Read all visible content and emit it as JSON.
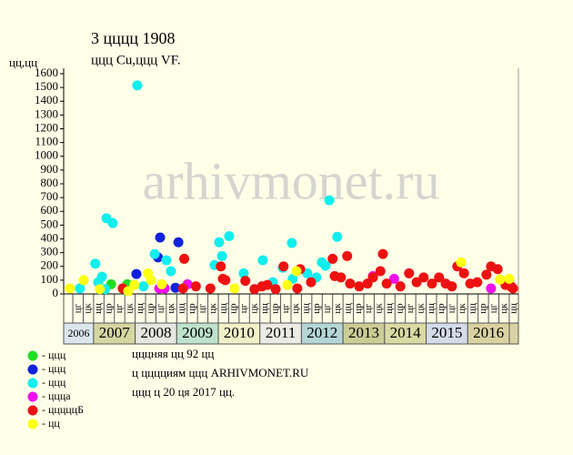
{
  "chart_data": {
    "type": "scatter",
    "title": "3 цццц 1908",
    "subtitle": "ццц Cu,ццц VF.",
    "y_label": "цц,цц",
    "watermark": "arhivmonet.ru",
    "notes": [
      "цццняя цц 92 цц",
      "ц цццциям ццц ARHIVMONET.RU",
      "ццц ц 20 ця 2017 цц."
    ],
    "xlim": [
      2006.28,
      2017.22
    ],
    "ylim": [
      0,
      1600
    ],
    "yticks": [
      0,
      100,
      200,
      300,
      400,
      500,
      600,
      700,
      800,
      900,
      1000,
      1100,
      1200,
      1300,
      1400,
      1500,
      1600
    ],
    "xticks": [
      {
        "value": 2006,
        "label": "2006"
      },
      {
        "value": 2007,
        "label": "2007"
      },
      {
        "value": 2008,
        "label": "2008"
      },
      {
        "value": 2009,
        "label": "2009"
      },
      {
        "value": 2010,
        "label": "2010"
      },
      {
        "value": 2011,
        "label": "2011"
      },
      {
        "value": 2012,
        "label": "2012"
      },
      {
        "value": 2013,
        "label": "2013"
      },
      {
        "value": 2014,
        "label": "2014"
      },
      {
        "value": 2015,
        "label": "2015"
      },
      {
        "value": 2016,
        "label": "2016"
      }
    ],
    "band_colors": [
      "#dce6ee",
      "#d6d6a2",
      "#e6e6e0",
      "#bfe2cc",
      "#f2f0c8",
      "#ecece4",
      "#b4d6d6",
      "#cccc96",
      "#dadaa4",
      "#d4dcea",
      "#dad2a2"
    ],
    "quarter_labels": [
      "цц",
      "цр",
      "цг",
      "цк"
    ],
    "series": [
      {
        "name": "- ццц",
        "color": "#22dd22",
        "x": [
          2007.42,
          2007.81
        ],
        "values": [
          70,
          70
        ]
      },
      {
        "name": "- ццц",
        "color": "#1122dd",
        "x": [
          2008.03,
          2008.55,
          2008.6,
          2008.97,
          2009.04
        ],
        "values": [
          145,
          265,
          410,
          45,
          375
        ]
      },
      {
        "name": "- ццц",
        "color": "#11eeee",
        "x": [
          2006.67,
          2007.04,
          2007.11,
          2007.2,
          2007.28,
          2007.31,
          2007.46,
          2008.05,
          2008.2,
          2008.47,
          2008.75,
          2008.86,
          2009.91,
          2010.02,
          2010.09,
          2010.26,
          2010.61,
          2011.07,
          2011.31,
          2011.55,
          2011.77,
          2011.79,
          2012.14,
          2012.36,
          2012.49,
          2012.58,
          2012.67,
          2012.86
        ],
        "values": [
          40,
          220,
          85,
          125,
          35,
          550,
          515,
          1515,
          55,
          290,
          245,
          165,
          210,
          375,
          275,
          420,
          150,
          245,
          85,
          190,
          370,
          110,
          150,
          120,
          230,
          205,
          680,
          415
        ]
      },
      {
        "name": "- ццца",
        "color": "#ee11ee",
        "x": [
          2008.58,
          2008.71,
          2009.26,
          2013.72,
          2014.23,
          2016.56
        ],
        "values": [
          40,
          40,
          70,
          130,
          110,
          40
        ]
      },
      {
        "name": "- цццццБ",
        "color": "#ee1111",
        "x": [
          2007.7,
          2009.15,
          2009.18,
          2009.46,
          2009.81,
          2010.06,
          2010.11,
          2010.17,
          2010.65,
          2010.87,
          2011.05,
          2011.18,
          2011.38,
          2011.57,
          2011.9,
          2011.97,
          2012.23,
          2012.75,
          2012.8,
          2012.95,
          2013.1,
          2013.17,
          2013.39,
          2013.59,
          2013.72,
          2013.9,
          2013.96,
          2014.05,
          2014.38,
          2014.59,
          2014.77,
          2014.94,
          2015.14,
          2015.31,
          2015.47,
          2015.62,
          2015.75,
          2015.91,
          2016.06,
          2016.23,
          2016.45,
          2016.56,
          2016.72,
          2016.91,
          2017.04,
          2017.09
        ],
        "values": [
          40,
          40,
          255,
          55,
          40,
          200,
          110,
          100,
          95,
          35,
          55,
          65,
          35,
          200,
          40,
          180,
          85,
          255,
          130,
          120,
          275,
          75,
          55,
          75,
          120,
          165,
          290,
          75,
          55,
          150,
          85,
          120,
          75,
          120,
          75,
          55,
          200,
          150,
          75,
          85,
          140,
          200,
          180,
          65,
          55,
          40
        ]
      },
      {
        "name": "- цц",
        "color": "#ffff11",
        "x": [
          2006.43,
          2006.76,
          2007.15,
          2007.83,
          2007.98,
          2008.31,
          2008.38,
          2008.64,
          2010.39,
          2011.66,
          2011.88,
          2015.84,
          2016.78,
          2017.0
        ],
        "values": [
          40,
          100,
          35,
          20,
          65,
          150,
          100,
          70,
          40,
          65,
          165,
          230,
          105,
          110
        ]
      }
    ]
  }
}
